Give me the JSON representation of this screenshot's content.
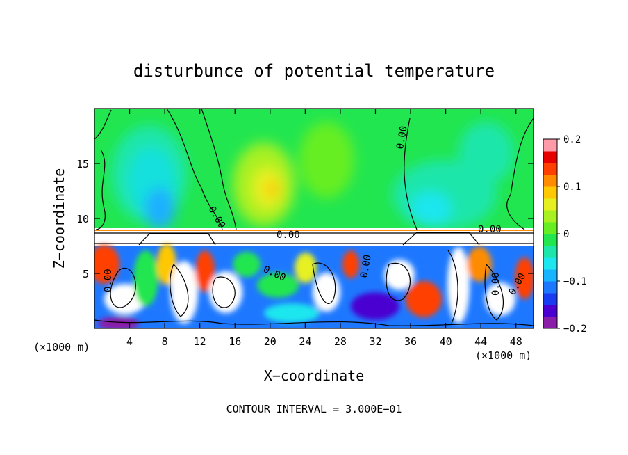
{
  "chart_data": {
    "type": "heatmap",
    "title": "disturbunce of potential temperature",
    "xlabel": "X−coordinate",
    "ylabel": "Z−coordinate",
    "x_unit_left": "(×1000 m)",
    "x_unit_right": "(×1000 m)",
    "footer": "CONTOUR INTERVAL = 3.000E−01",
    "xlim": [
      0,
      50
    ],
    "ylim": [
      0,
      20
    ],
    "x_ticks": [
      4,
      8,
      12,
      16,
      20,
      24,
      28,
      32,
      36,
      40,
      44,
      48
    ],
    "y_ticks": [
      5,
      10,
      15
    ],
    "colorbar": {
      "range": [
        -0.2,
        0.2
      ],
      "ticks": [
        0.2,
        0.1,
        0,
        -0.1,
        -0.2
      ],
      "tick_labels": [
        "0.2",
        "0.1",
        "0",
        "−0.1",
        "−0.2"
      ],
      "colors": [
        "#8a1ea8",
        "#4a00d0",
        "#1a3cf0",
        "#1e78ff",
        "#19b4ff",
        "#1ee6ee",
        "#1ee6aa",
        "#22e650",
        "#66ee22",
        "#a8f020",
        "#e6f020",
        "#ffc800",
        "#ff8c00",
        "#ff4000",
        "#e60000",
        "#ff9aa8"
      ]
    },
    "contour_labels": [
      "0.00",
      "0.00",
      "0.00",
      "0.00",
      "0.00",
      "0.00",
      "0.00",
      "0.00",
      "0.00"
    ],
    "regions": [
      {
        "name": "upper-layer-background",
        "z": [
          9,
          20
        ],
        "value": 0.0
      },
      {
        "name": "cold-plume-x8",
        "x": 8,
        "z": 14,
        "value": -0.08
      },
      {
        "name": "warm-patch-x19",
        "x": 19,
        "z": 13,
        "value": 0.06
      },
      {
        "name": "cold-plume-x38",
        "x": 38,
        "z": 12,
        "value": -0.05
      },
      {
        "name": "lower-turbulent-layer",
        "z": [
          0,
          8
        ],
        "value_range": [
          -0.2,
          0.2
        ]
      }
    ]
  }
}
